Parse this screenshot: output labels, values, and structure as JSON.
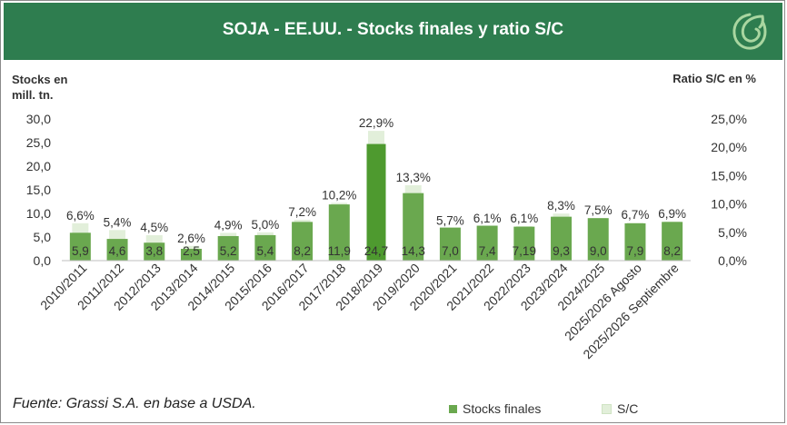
{
  "header": {
    "title": "SOJA - EE.UU. - Stocks finales y ratio S/C",
    "logo_icon": "grassi-leaf-icon"
  },
  "colors": {
    "header_bg": "#2e7d4f",
    "bar_stocks": "#6aa84f",
    "bar_ratio": "#e2efda",
    "bar_stocks_highlight": "#4e9a2f"
  },
  "chart_data": {
    "type": "bar",
    "title": "SOJA - EE.UU. - Stocks finales y ratio S/C",
    "ylabel_left": "Stocks en mill. tn.",
    "ylabel_right": "Ratio S/C en %",
    "ylim_left": [
      0,
      30
    ],
    "ylim_right": [
      0,
      25
    ],
    "yticks_left": [
      "0,0",
      "5,0",
      "10,0",
      "15,0",
      "20,0",
      "25,0",
      "30,0"
    ],
    "yticks_right": [
      "0,0%",
      "5,0%",
      "10,0%",
      "15,0%",
      "20,0%",
      "25,0%"
    ],
    "categories": [
      "2010/2011",
      "2011/2012",
      "2012/2013",
      "2013/2014",
      "2014/2015",
      "2015/2016",
      "2016/2017",
      "2017/2018",
      "2018/2019",
      "2019/2020",
      "2020/2021",
      "2021/2022",
      "2022/2023",
      "2023/2024",
      "2024/2025",
      "2025/2026 Agosto",
      "2025/2026 Septiembre"
    ],
    "series": [
      {
        "name": "Stocks finales",
        "axis": "left",
        "values": [
          5.9,
          4.6,
          3.8,
          2.5,
          5.2,
          5.4,
          8.2,
          11.9,
          24.7,
          14.3,
          7.0,
          7.4,
          7.19,
          9.3,
          9.0,
          7.9,
          8.2
        ],
        "labels": [
          "5,9",
          "4,6",
          "3,8",
          "2,5",
          "5,2",
          "5,4",
          "8,2",
          "11,9",
          "24,7",
          "14,3",
          "7,0",
          "7,4",
          "7,19",
          "9,3",
          "9,0",
          "7,9",
          "8,2"
        ]
      },
      {
        "name": "S/C",
        "axis": "right",
        "values": [
          6.6,
          5.4,
          4.5,
          2.6,
          4.9,
          5.0,
          7.2,
          10.2,
          22.9,
          13.3,
          5.7,
          6.1,
          6.1,
          8.3,
          7.5,
          6.7,
          6.9
        ],
        "labels": [
          "6,6%",
          "5,4%",
          "4,5%",
          "2,6%",
          "4,9%",
          "5,0%",
          "7,2%",
          "10,2%",
          "22,9%",
          "13,3%",
          "5,7%",
          "6,1%",
          "6,1%",
          "8,3%",
          "7,5%",
          "6,7%",
          "6,9%"
        ]
      }
    ],
    "legend": [
      "Stocks finales",
      "S/C"
    ],
    "legend_position": "bottom-right",
    "grid": false
  },
  "footer": {
    "source": "Fuente: Grassi S.A. en base a USDA."
  }
}
